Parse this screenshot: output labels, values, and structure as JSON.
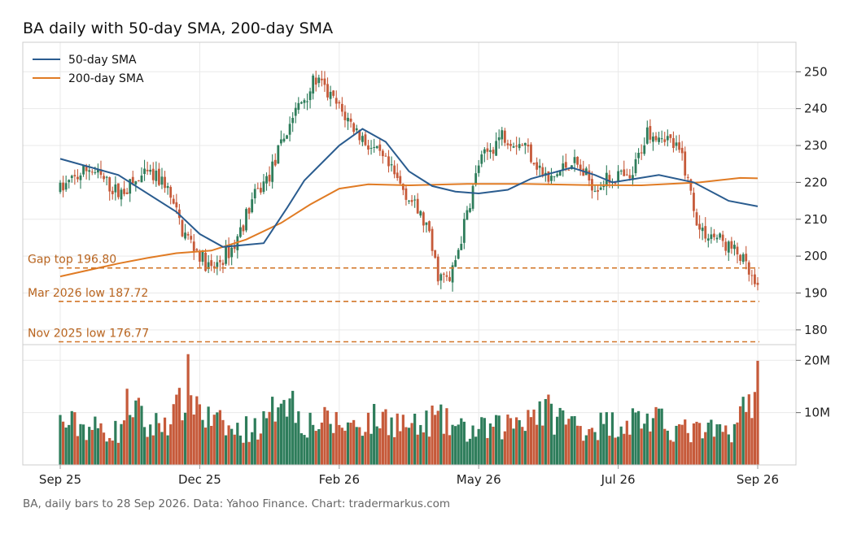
{
  "title": "BA daily with 50-day SMA, 200-day SMA",
  "footer": "BA, daily bars to 28 Sep 2026. Data: Yahoo Finance. Chart: tradermarkus.com",
  "colors": {
    "up": "#2e7d5b",
    "down": "#c65a3a",
    "sma50": "#2a5c8f",
    "sma200": "#e07b24",
    "ref_line": "#d2772a",
    "ref_text": "#b8641f",
    "grid": "#e9e9e9",
    "axis": "#cccccc"
  },
  "chart_data": {
    "type": "candlestick",
    "price_axis": {
      "ticks": [
        180,
        190,
        200,
        210,
        220,
        230,
        240,
        250
      ],
      "range": [
        176,
        258
      ],
      "side": "right"
    },
    "volume_axis": {
      "ticks": [
        10000000,
        20000000
      ],
      "tick_labels": [
        "10M",
        "20M"
      ],
      "range": [
        0,
        23000000
      ]
    },
    "x_ticks": [
      {
        "i": 0,
        "label": "Sep 25"
      },
      {
        "i": 48,
        "label": "Dec 25"
      },
      {
        "i": 96,
        "label": "Feb 26"
      },
      {
        "i": 144,
        "label": "May 26"
      },
      {
        "i": 192,
        "label": "Jul 26"
      },
      {
        "i": 240,
        "label": "Sep 26"
      }
    ],
    "legend": {
      "position": "top-left",
      "items": [
        {
          "name": "50-day SMA",
          "color": "#2a5c8f"
        },
        {
          "name": "200-day SMA",
          "color": "#e07b24"
        }
      ]
    },
    "reference_lines": [
      {
        "label": "Gap top 196.80",
        "value": 196.8
      },
      {
        "label": "Mar 2026 low 187.72",
        "value": 187.72
      },
      {
        "label": "Nov 2025 low 176.77",
        "value": 176.77
      }
    ],
    "price_path": [
      [
        0,
        218
      ],
      [
        10,
        224
      ],
      [
        20,
        217
      ],
      [
        30,
        222
      ],
      [
        36,
        220
      ],
      [
        42,
        207
      ],
      [
        52,
        196
      ],
      [
        60,
        203
      ],
      [
        66,
        215
      ],
      [
        72,
        222
      ],
      [
        80,
        238
      ],
      [
        88,
        248
      ],
      [
        96,
        240
      ],
      [
        104,
        232
      ],
      [
        112,
        225
      ],
      [
        120,
        216
      ],
      [
        126,
        208
      ],
      [
        130,
        195
      ],
      [
        134,
        193
      ],
      [
        138,
        205
      ],
      [
        144,
        225
      ],
      [
        152,
        233
      ],
      [
        160,
        230
      ],
      [
        168,
        220
      ],
      [
        172,
        223
      ],
      [
        176,
        226
      ],
      [
        184,
        219
      ],
      [
        192,
        222
      ],
      [
        196,
        220
      ],
      [
        202,
        234
      ],
      [
        208,
        233
      ],
      [
        214,
        227
      ],
      [
        220,
        207
      ],
      [
        226,
        205
      ],
      [
        234,
        200
      ],
      [
        240,
        190
      ]
    ],
    "sma50_path": [
      [
        0,
        226.4
      ],
      [
        20,
        222
      ],
      [
        40,
        212
      ],
      [
        48,
        206
      ],
      [
        56,
        202.5
      ],
      [
        70,
        203.5
      ],
      [
        78,
        213
      ],
      [
        84,
        220.5
      ],
      [
        96,
        230
      ],
      [
        104,
        234.5
      ],
      [
        112,
        231
      ],
      [
        120,
        223
      ],
      [
        128,
        219
      ],
      [
        136,
        217.5
      ],
      [
        144,
        217
      ],
      [
        154,
        218
      ],
      [
        162,
        221
      ],
      [
        176,
        224
      ],
      [
        184,
        222
      ],
      [
        190,
        220
      ],
      [
        198,
        221
      ],
      [
        206,
        222
      ],
      [
        218,
        220
      ],
      [
        230,
        215
      ],
      [
        240,
        213.5
      ]
    ],
    "sma200_path": [
      [
        0,
        194.5
      ],
      [
        20,
        198
      ],
      [
        30,
        199.5
      ],
      [
        40,
        200.8
      ],
      [
        52,
        201.5
      ],
      [
        64,
        204.5
      ],
      [
        76,
        209
      ],
      [
        86,
        214
      ],
      [
        96,
        218.3
      ],
      [
        106,
        219.5
      ],
      [
        120,
        219.2
      ],
      [
        140,
        219.6
      ],
      [
        160,
        219.6
      ],
      [
        180,
        219.3
      ],
      [
        200,
        219.2
      ],
      [
        220,
        220
      ],
      [
        234,
        221.2
      ],
      [
        240,
        221.1
      ]
    ],
    "volume_path": [
      [
        0,
        9
      ],
      [
        20,
        7
      ],
      [
        24,
        14
      ],
      [
        30,
        7.5
      ],
      [
        40,
        11
      ],
      [
        44,
        17
      ],
      [
        50,
        10
      ],
      [
        60,
        7
      ],
      [
        72,
        9
      ],
      [
        76,
        17
      ],
      [
        84,
        9
      ],
      [
        92,
        9
      ],
      [
        100,
        8.5
      ],
      [
        112,
        10
      ],
      [
        124,
        7.5
      ],
      [
        128,
        10
      ],
      [
        140,
        7
      ],
      [
        152,
        8
      ],
      [
        164,
        12
      ],
      [
        180,
        8
      ],
      [
        192,
        9
      ],
      [
        200,
        10
      ],
      [
        216,
        7
      ],
      [
        230,
        7
      ],
      [
        236,
        12
      ],
      [
        240,
        18
      ]
    ]
  }
}
